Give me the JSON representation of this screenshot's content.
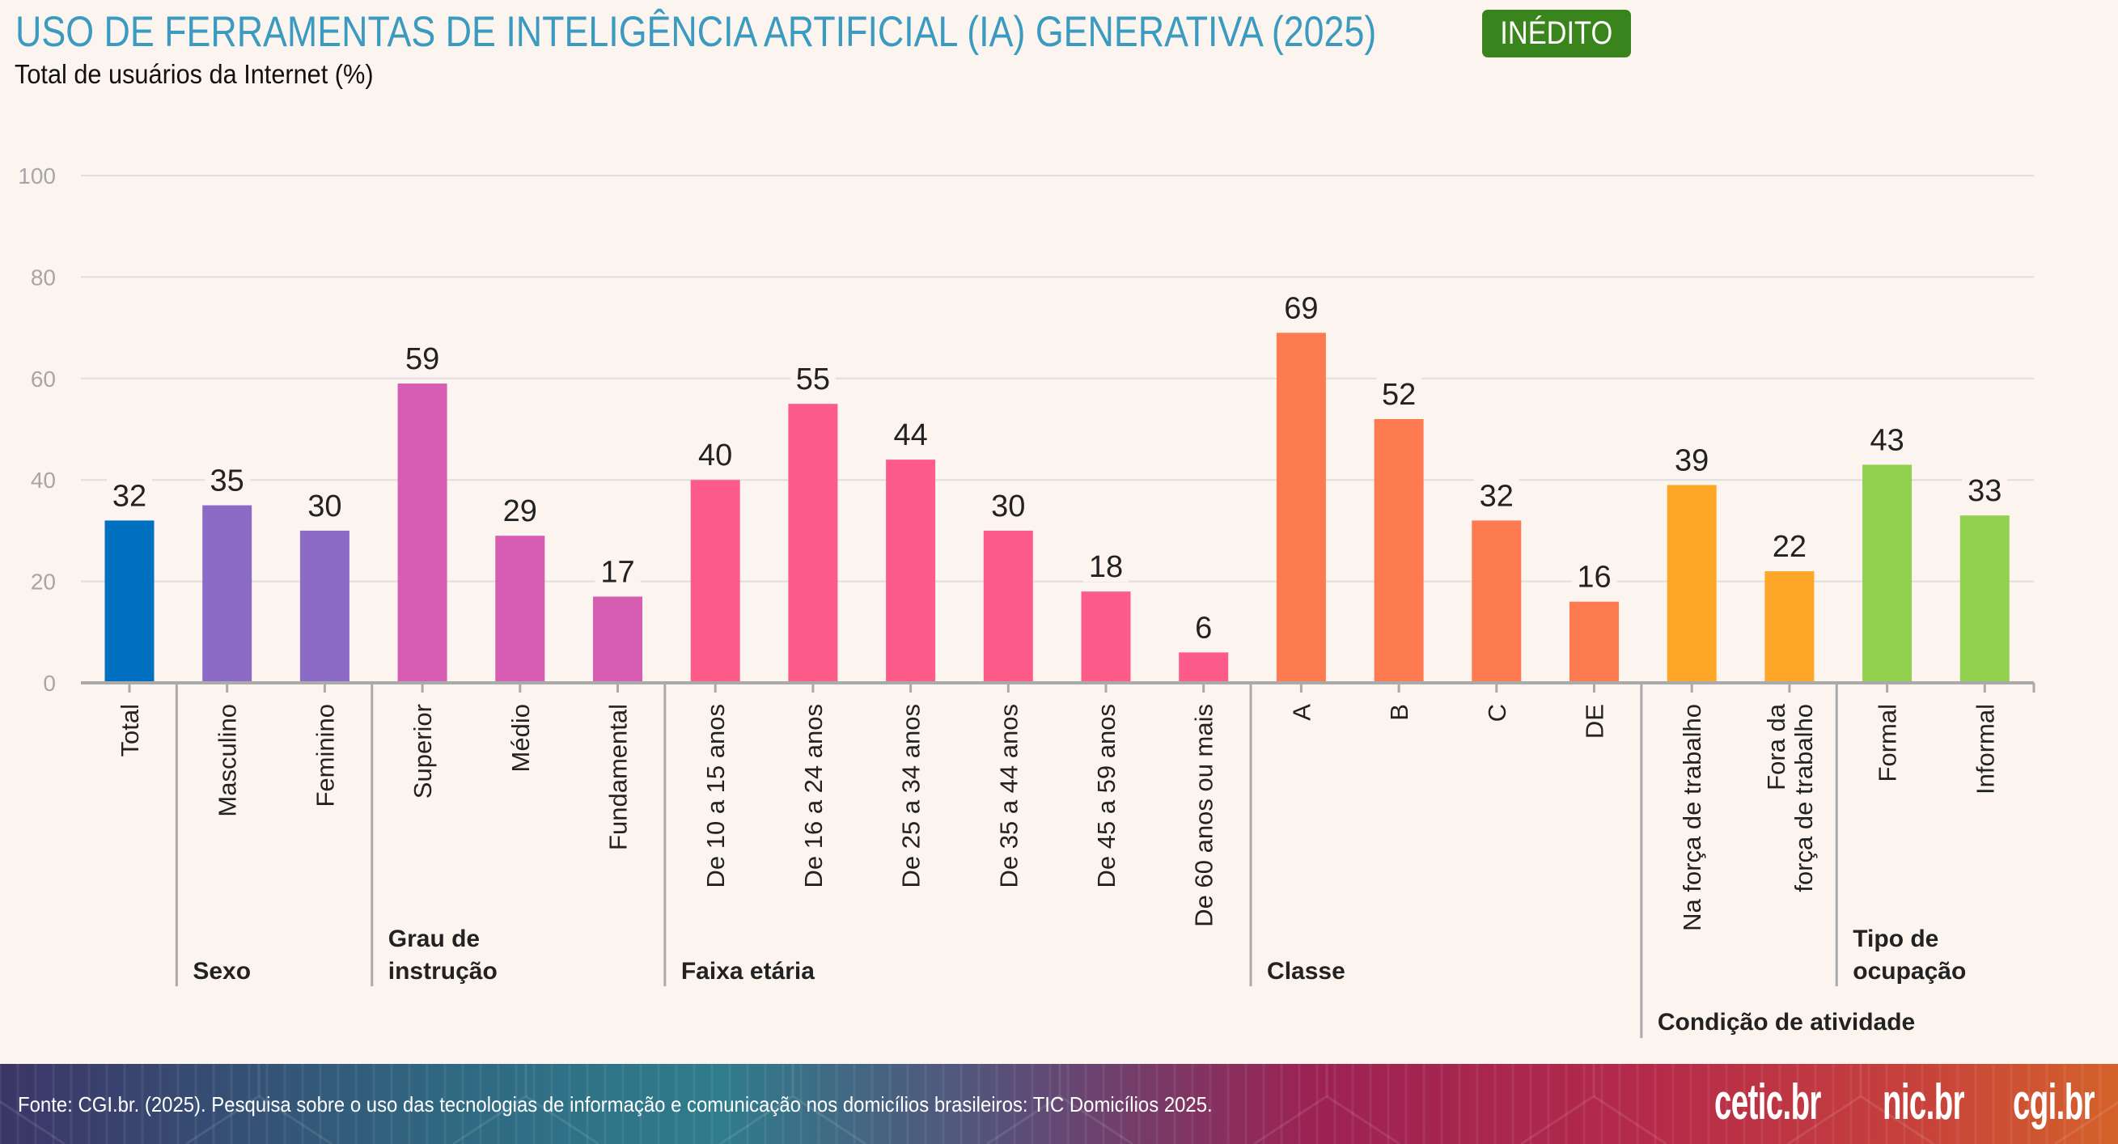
{
  "header": {
    "title": "USO DE FERRAMENTAS DE INTELIGÊNCIA ARTIFICIAL (IA) GENERATIVA (2025)",
    "badge": "INÉDITO",
    "subtitle": "Total de usuários da Internet (%)"
  },
  "colors": {
    "background": "#fcf5ef",
    "title": "#3a9ac0",
    "badge": "#3a841d",
    "total": "#0070c0",
    "sexo": "#8b6bc5",
    "grau_instrucao": "#d75db2",
    "faixa_etaria": "#fd5c8a",
    "classe": "#fe7a51",
    "condicao_atividade": "#fea628",
    "tipo_ocupacao": "#92d050",
    "axis": "#aaaaaa",
    "grid": "#dedede",
    "tick_label": "#a6a6a6"
  },
  "chart_data": {
    "type": "bar",
    "title": "USO DE FERRAMENTAS DE INTELIGÊNCIA ARTIFICIAL (IA) GENERATIVA (2025)",
    "subtitle": "Total de usuários da Internet (%)",
    "xlabel": "",
    "ylabel": "",
    "ylim": [
      0,
      100
    ],
    "yticks": [
      0,
      20,
      40,
      60,
      80,
      100
    ],
    "grid": true,
    "legend": "none",
    "categories": [
      "Total",
      "Masculino",
      "Feminino",
      "Superior",
      "Médio",
      "Fundamental",
      "De 10 a 15 anos",
      "De 16 a 24 anos",
      "De 25 a 34 anos",
      "De 35 a 44 anos",
      "De 45 a 59 anos",
      "De 60 anos ou mais",
      "A",
      "B",
      "C",
      "DE",
      "Na força de trabalho",
      "Fora da força de trabalho",
      "Formal",
      "Informal"
    ],
    "category_label_lines": [
      [
        "Total"
      ],
      [
        "Masculino"
      ],
      [
        "Feminino"
      ],
      [
        "Superior"
      ],
      [
        "Médio"
      ],
      [
        "Fundamental"
      ],
      [
        "De 10 a 15 anos"
      ],
      [
        "De 16 a 24 anos"
      ],
      [
        "De 25 a 34 anos"
      ],
      [
        "De 35 a 44 anos"
      ],
      [
        "De 45 a 59 anos"
      ],
      [
        "De 60 anos ou mais"
      ],
      [
        "A"
      ],
      [
        "B"
      ],
      [
        "C"
      ],
      [
        "DE"
      ],
      [
        "Na força de trabalho"
      ],
      [
        "Fora da",
        "força de trabalho"
      ],
      [
        "Formal"
      ],
      [
        "Informal"
      ]
    ],
    "values": [
      32,
      35,
      30,
      59,
      29,
      17,
      40,
      55,
      44,
      30,
      18,
      6,
      69,
      52,
      32,
      16,
      39,
      22,
      43,
      33
    ],
    "bar_groups": [
      "total",
      "sexo",
      "sexo",
      "grau_instrucao",
      "grau_instrucao",
      "grau_instrucao",
      "faixa_etaria",
      "faixa_etaria",
      "faixa_etaria",
      "faixa_etaria",
      "faixa_etaria",
      "faixa_etaria",
      "classe",
      "classe",
      "classe",
      "classe",
      "condicao_atividade",
      "condicao_atividade",
      "tipo_ocupacao",
      "tipo_ocupacao"
    ],
    "groups": [
      {
        "key": "total",
        "label_lines": [],
        "first": 0,
        "last": 0
      },
      {
        "key": "sexo",
        "label_lines": [
          "Sexo"
        ],
        "first": 1,
        "last": 2
      },
      {
        "key": "grau_instrucao",
        "label_lines": [
          "Grau de",
          "instrução"
        ],
        "first": 3,
        "last": 5
      },
      {
        "key": "faixa_etaria",
        "label_lines": [
          "Faixa etária"
        ],
        "first": 6,
        "last": 11
      },
      {
        "key": "classe",
        "label_lines": [
          "Classe"
        ],
        "first": 12,
        "last": 15
      },
      {
        "key": "condicao_atividade",
        "label_lines": [
          "Condição de atividade"
        ],
        "first": 16,
        "last": 17,
        "lower": true
      },
      {
        "key": "tipo_ocupacao",
        "label_lines": [
          "Tipo de",
          "ocupação"
        ],
        "first": 18,
        "last": 19
      }
    ]
  },
  "footer": {
    "source": "Fonte: CGI.br. (2025). Pesquisa sobre o uso das tecnologias de informação e comunicação nos domicílios brasileiros: TIC Domicílios 2025.",
    "logos": [
      "cetic.br",
      "nic.br",
      "cgi.br"
    ]
  }
}
